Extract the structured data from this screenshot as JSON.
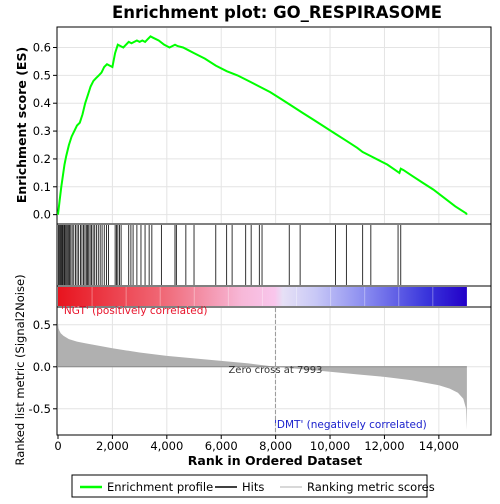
{
  "chart_data": {
    "type": "line",
    "title": "Enrichment plot: GO_RESPIRASOME",
    "es_panel": {
      "ylabel": "Enrichment score (ES)",
      "ylim": [
        -0.03,
        0.67
      ],
      "yticks": [
        0.0,
        0.1,
        0.2,
        0.3,
        0.4,
        0.5,
        0.6
      ],
      "ytick_labels": [
        "0.0",
        "0.1",
        "0.2",
        "0.3",
        "0.4",
        "0.5",
        "0.6"
      ],
      "series": [
        {
          "x": [
            0,
            60,
            120,
            180,
            240,
            300,
            400,
            500,
            600,
            700,
            800,
            900,
            1000,
            1100,
            1200,
            1300,
            1400,
            1500,
            1600,
            1700,
            1800,
            1900,
            2000,
            2100,
            2200,
            2300,
            2400,
            2500,
            2600,
            2700,
            2800,
            2900,
            3000,
            3100,
            3200,
            3300,
            3400,
            3500,
            3700,
            3900,
            4100,
            4300,
            4400,
            4600,
            4800,
            5000,
            5400,
            5800,
            6200,
            6600,
            7000,
            7400,
            7800,
            8200,
            8600,
            9000,
            9400,
            9800,
            10200,
            10600,
            11000,
            11200,
            11500,
            11800,
            12100,
            12400,
            12550,
            12600,
            12700,
            13000,
            13400,
            13800,
            14200,
            14600,
            15000,
            15030
          ],
          "y": [
            0.0,
            0.05,
            0.1,
            0.14,
            0.18,
            0.21,
            0.25,
            0.28,
            0.3,
            0.32,
            0.33,
            0.36,
            0.4,
            0.43,
            0.46,
            0.48,
            0.49,
            0.5,
            0.51,
            0.53,
            0.54,
            0.535,
            0.53,
            0.58,
            0.61,
            0.605,
            0.6,
            0.61,
            0.62,
            0.615,
            0.62,
            0.625,
            0.62,
            0.625,
            0.62,
            0.63,
            0.64,
            0.635,
            0.625,
            0.61,
            0.6,
            0.61,
            0.605,
            0.6,
            0.59,
            0.58,
            0.56,
            0.535,
            0.515,
            0.5,
            0.48,
            0.46,
            0.44,
            0.415,
            0.39,
            0.365,
            0.34,
            0.315,
            0.29,
            0.265,
            0.24,
            0.225,
            0.21,
            0.195,
            0.18,
            0.16,
            0.15,
            0.165,
            0.16,
            0.14,
            0.115,
            0.09,
            0.06,
            0.03,
            0.005,
            0.0
          ]
        }
      ]
    },
    "hits": [
      20,
      60,
      90,
      130,
      160,
      190,
      230,
      260,
      300,
      340,
      380,
      420,
      470,
      520,
      580,
      640,
      700,
      760,
      830,
      880,
      940,
      990,
      1040,
      1080,
      1130,
      1180,
      1230,
      1290,
      1350,
      1410,
      1480,
      1550,
      1620,
      1700,
      1780,
      1860,
      2100,
      2150,
      2200,
      2260,
      2320,
      2600,
      2680,
      2760,
      2900,
      3050,
      3200,
      3350,
      3450,
      3800,
      4300,
      4350,
      4700,
      5000,
      5800,
      6200,
      6400,
      6900,
      7100,
      7400,
      7500,
      8500,
      8900,
      10200,
      10600,
      11200,
      11500,
      12500,
      12600
    ],
    "metric_panel": {
      "ylabel": "Ranked list metric (Signal2Noise)",
      "ylim": [
        -0.8,
        0.7
      ],
      "yticks": [
        0.5,
        0.0,
        -0.5
      ],
      "ytick_labels": [
        "0.5",
        "0.0",
        "-0.5"
      ],
      "profile": {
        "x": [
          0,
          20,
          50,
          100,
          200,
          400,
          700,
          1000,
          1500,
          2000,
          3000,
          4000,
          5000,
          6000,
          7000,
          7993,
          9000,
          10000,
          11000,
          12000,
          13000,
          13500,
          14000,
          14400,
          14700,
          14900,
          15000,
          15030
        ],
        "y": [
          0.52,
          0.46,
          0.43,
          0.4,
          0.37,
          0.33,
          0.3,
          0.28,
          0.25,
          0.22,
          0.17,
          0.13,
          0.1,
          0.07,
          0.04,
          0.0,
          -0.03,
          -0.06,
          -0.09,
          -0.12,
          -0.16,
          -0.19,
          -0.22,
          -0.26,
          -0.31,
          -0.38,
          -0.5,
          -0.75
        ]
      },
      "zero_cross_label": "Zero cross at 7993",
      "pos_label": "'NGT' (positively correlated)",
      "neg_label": "'DMT' (negatively correlated)"
    },
    "x_axis": {
      "label": "Rank in Ordered Dataset",
      "xlim": [
        0,
        15880
      ],
      "ticks": [
        0,
        2000,
        4000,
        6000,
        8000,
        10000,
        12000,
        14000
      ],
      "tick_labels": [
        "0",
        "2,000",
        "4,000",
        "6,000",
        "8,000",
        "10,000",
        "12,000",
        "14,000"
      ],
      "n_genes": 15030
    },
    "colors": {
      "enrichment_line": "#00ff00",
      "hit_line": "#000000",
      "metric_fill": "#b0b0b0",
      "positive_text": "#e8142c",
      "negative_text": "#1c22cc",
      "zero_cross_line": "#999999"
    },
    "legend": {
      "placement": "bottom",
      "items": [
        {
          "label": "Enrichment profile",
          "type": "line",
          "color": "#00ff00"
        },
        {
          "label": "Hits",
          "type": "line",
          "color": "#000000"
        },
        {
          "label": "Ranking metric scores",
          "type": "line",
          "color": "#cccccc"
        }
      ]
    }
  }
}
